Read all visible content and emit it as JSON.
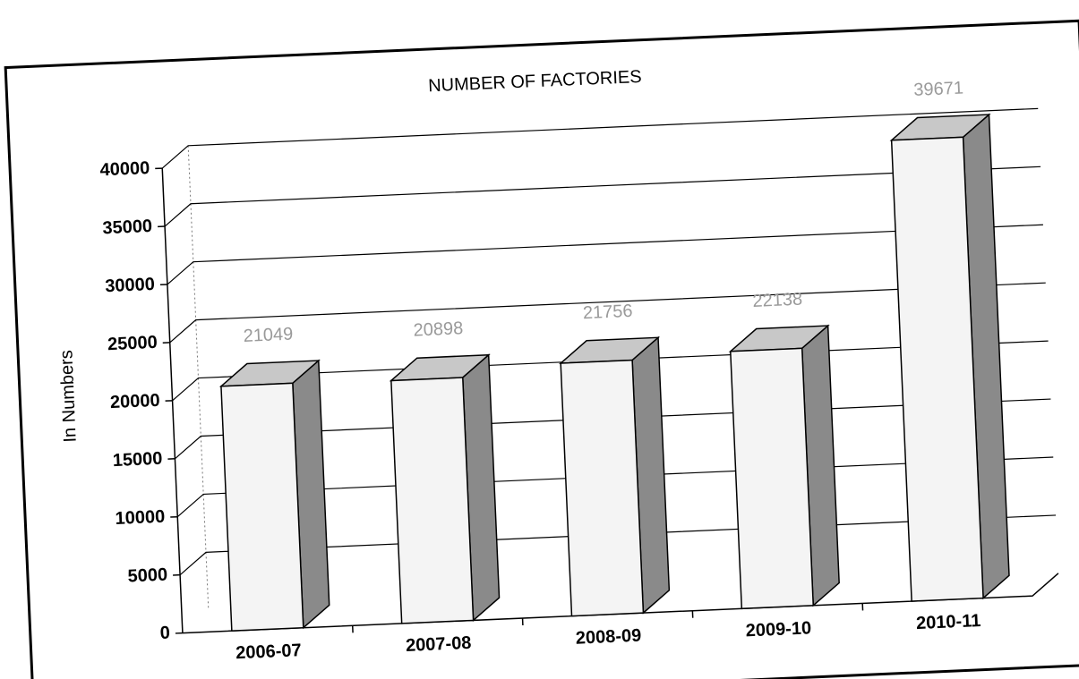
{
  "chart_data": {
    "type": "bar3d",
    "title": "NUMBER OF FACTORIES",
    "y_label": "In Numbers",
    "categories": [
      "2006-07",
      "2007-08",
      "2008-09",
      "2009-10",
      "2010-11"
    ],
    "values": [
      21049,
      20898,
      21756,
      22138,
      39671
    ],
    "color": "#f4f4f4",
    "side_color": "#8a8a8a",
    "top_color": "#c8c8c8",
    "ylim": [
      0,
      40000
    ],
    "yticks": [
      0,
      5000,
      10000,
      15000,
      20000,
      25000,
      30000,
      35000,
      40000
    ],
    "grid": true
  }
}
